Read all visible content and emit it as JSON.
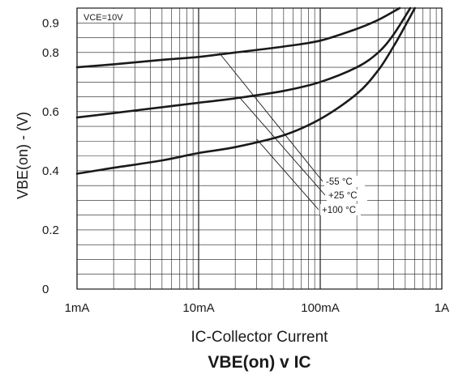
{
  "chart_data": {
    "type": "line",
    "title": "VBE(on) v IC",
    "xlabel": "IC-Collector Current",
    "ylabel": "VBE(on) - (V)",
    "condition": "VCE=10V",
    "x_scale": "log",
    "x_unit": "A",
    "xlim": [
      0.001,
      1
    ],
    "ylim": [
      0,
      0.95
    ],
    "x_ticks": [
      0.001,
      0.01,
      0.1,
      1
    ],
    "x_tick_labels": [
      "1mA",
      "10mA",
      "100mA",
      "1A"
    ],
    "y_ticks": [
      0,
      0.2,
      0.4,
      0.6,
      0.8,
      0.9
    ],
    "y_tick_labels": [
      "0",
      "0.2",
      "0.4",
      "0.6",
      "0.8",
      "0.9"
    ],
    "grid": true,
    "series": [
      {
        "name": "-55 °C",
        "x": [
          0.001,
          0.002,
          0.005,
          0.01,
          0.02,
          0.05,
          0.1,
          0.2,
          0.3,
          0.45
        ],
        "y": [
          0.75,
          0.76,
          0.775,
          0.785,
          0.8,
          0.82,
          0.84,
          0.88,
          0.91,
          0.95
        ]
      },
      {
        "name": "+25 °C",
        "x": [
          0.001,
          0.002,
          0.005,
          0.01,
          0.02,
          0.05,
          0.1,
          0.2,
          0.3,
          0.4,
          0.55
        ],
        "y": [
          0.58,
          0.595,
          0.615,
          0.63,
          0.645,
          0.67,
          0.7,
          0.75,
          0.8,
          0.86,
          0.95
        ]
      },
      {
        "name": "+100 °C",
        "x": [
          0.001,
          0.002,
          0.005,
          0.01,
          0.02,
          0.05,
          0.1,
          0.2,
          0.3,
          0.4,
          0.5,
          0.6
        ],
        "y": [
          0.39,
          0.41,
          0.435,
          0.46,
          0.48,
          0.52,
          0.575,
          0.66,
          0.74,
          0.82,
          0.89,
          0.95
        ]
      }
    ]
  }
}
